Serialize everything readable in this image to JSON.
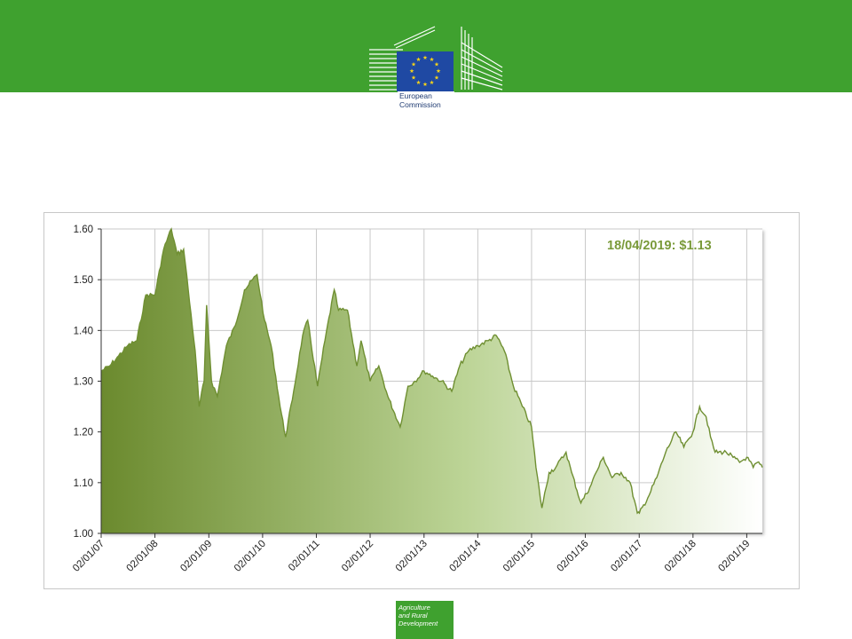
{
  "header": {
    "logo_line1": "European",
    "logo_line2": "Commission",
    "colors": {
      "bar": "#3fa12f",
      "flag": "#1f49a3",
      "star": "#f7d318"
    }
  },
  "footer": {
    "badge_line1": "Agriculture",
    "badge_line2": "and Rural",
    "badge_line3": "Development"
  },
  "chart_data": {
    "type": "area",
    "title": "",
    "xlabel": "",
    "ylabel": "",
    "annotation": "18/04/2019: $1.13",
    "ylim": [
      1.0,
      1.6
    ],
    "yticks": [
      "1.00",
      "1.10",
      "1.20",
      "1.30",
      "1.40",
      "1.50",
      "1.60"
    ],
    "xticks": [
      "02/01/07",
      "02/01/08",
      "02/01/09",
      "02/01/10",
      "02/01/11",
      "02/01/12",
      "02/01/13",
      "02/01/14",
      "02/01/15",
      "02/01/16",
      "02/01/17",
      "02/01/18",
      "02/01/19"
    ],
    "grid": true,
    "colors": {
      "line": "#6f8f32",
      "fill_start": "#6b8a2e",
      "fill_end": "#ffffff",
      "annotation": "#7a9a3a"
    },
    "series": [
      {
        "x": [
          "2007-01-02",
          "2007-03-01",
          "2007-05-01",
          "2007-07-01",
          "2007-09-01",
          "2007-11-01",
          "2008-01-02",
          "2008-03-01",
          "2008-04-22",
          "2008-06-01",
          "2008-07-15",
          "2008-08-15",
          "2008-10-01",
          "2008-10-28",
          "2008-12-01",
          "2008-12-18",
          "2009-01-20",
          "2009-03-01",
          "2009-05-01",
          "2009-07-01",
          "2009-09-01",
          "2009-11-25",
          "2010-01-15",
          "2010-03-01",
          "2010-05-01",
          "2010-06-07",
          "2010-08-01",
          "2010-10-01",
          "2010-11-04",
          "2011-01-10",
          "2011-03-01",
          "2011-05-03",
          "2011-06-01",
          "2011-08-01",
          "2011-10-04",
          "2011-11-01",
          "2012-01-02",
          "2012-03-01",
          "2012-05-01",
          "2012-07-24",
          "2012-09-15",
          "2012-11-01",
          "2013-01-02",
          "2013-03-01",
          "2013-05-01",
          "2013-07-09",
          "2013-09-01",
          "2013-11-01",
          "2014-01-02",
          "2014-03-15",
          "2014-05-08",
          "2014-07-01",
          "2014-09-01",
          "2014-11-01",
          "2015-01-02",
          "2015-02-01",
          "2015-03-13",
          "2015-05-01",
          "2015-06-15",
          "2015-08-24",
          "2015-10-01",
          "2015-12-03",
          "2016-02-01",
          "2016-03-15",
          "2016-05-03",
          "2016-07-01",
          "2016-09-01",
          "2016-11-01",
          "2016-12-20",
          "2017-01-03",
          "2017-03-01",
          "2017-05-01",
          "2017-07-01",
          "2017-09-08",
          "2017-11-01",
          "2018-01-02",
          "2018-02-16",
          "2018-04-01",
          "2018-05-01",
          "2018-06-01",
          "2018-08-15",
          "2018-10-01",
          "2018-11-15",
          "2019-01-02",
          "2019-02-15",
          "2019-03-15",
          "2019-04-18"
        ],
        "values": [
          1.32,
          1.33,
          1.35,
          1.37,
          1.38,
          1.47,
          1.47,
          1.56,
          1.6,
          1.55,
          1.56,
          1.48,
          1.36,
          1.25,
          1.3,
          1.45,
          1.3,
          1.27,
          1.37,
          1.41,
          1.48,
          1.51,
          1.42,
          1.37,
          1.25,
          1.19,
          1.28,
          1.39,
          1.42,
          1.29,
          1.38,
          1.48,
          1.44,
          1.44,
          1.33,
          1.38,
          1.3,
          1.33,
          1.27,
          1.21,
          1.29,
          1.3,
          1.32,
          1.31,
          1.3,
          1.28,
          1.33,
          1.36,
          1.37,
          1.38,
          1.39,
          1.36,
          1.29,
          1.25,
          1.21,
          1.13,
          1.05,
          1.12,
          1.13,
          1.16,
          1.12,
          1.06,
          1.09,
          1.12,
          1.15,
          1.11,
          1.12,
          1.1,
          1.04,
          1.04,
          1.07,
          1.11,
          1.16,
          1.2,
          1.17,
          1.2,
          1.25,
          1.23,
          1.19,
          1.16,
          1.16,
          1.15,
          1.14,
          1.15,
          1.13,
          1.14,
          1.13
        ]
      }
    ]
  }
}
